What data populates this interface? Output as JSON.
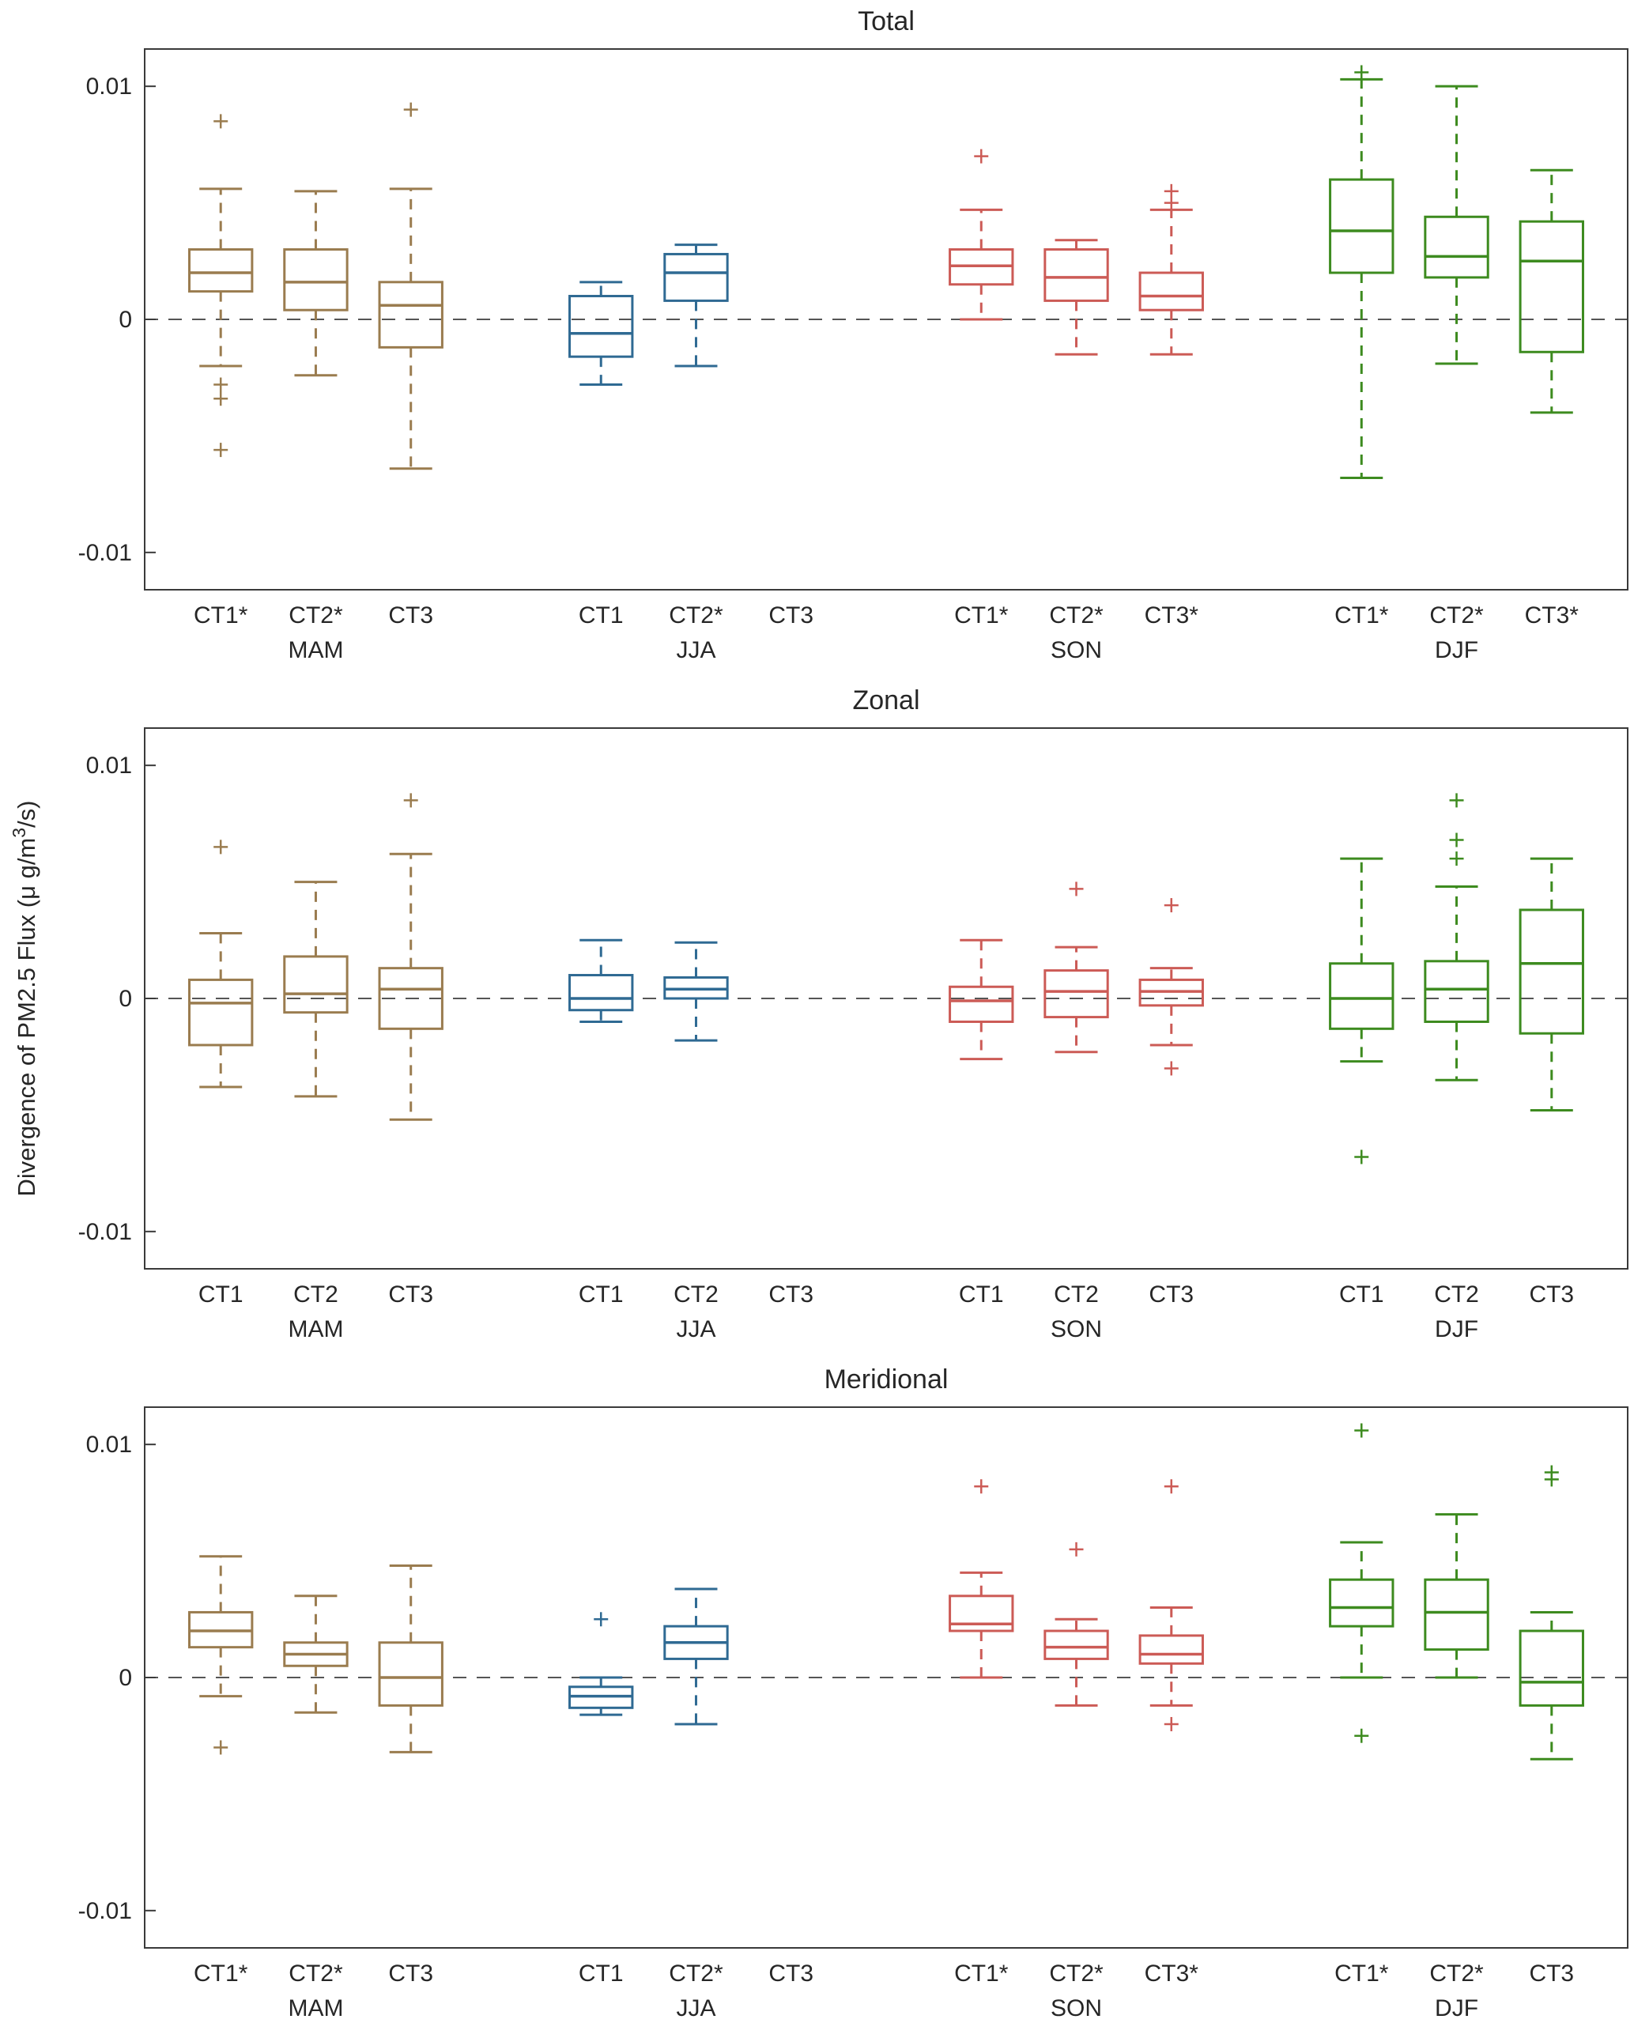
{
  "figure": {
    "y_ticks": [
      -0.01,
      0,
      0.01
    ],
    "ylim": [
      -0.0116,
      0.0116
    ],
    "ylabel_parts": {
      "pre": "Divergence of PM2.5 Flux (μ g/m",
      "sup": "3",
      "post": "/s)"
    },
    "season_colors": {
      "MAM": "#9A7C4F",
      "JJA": "#2F6A93",
      "SON": "#CC5B56",
      "DJF": "#3D8B1F"
    },
    "axis_color": "#3a3a3a",
    "text_color": "#262626",
    "zero_line_dashed": true
  },
  "chart_data": [
    {
      "type": "boxplot",
      "title": "Total",
      "show_ylabel": false,
      "groups": [
        {
          "season": "MAM",
          "boxes": [
            {
              "label": "CT1*",
              "stats": {
                "whislo": -0.002,
                "q1": 0.0012,
                "med": 0.002,
                "q3": 0.003,
                "whishi": 0.0056,
                "outliers": [
                  0.0085,
                  -0.0028,
                  -0.0034,
                  -0.0056
                ]
              }
            },
            {
              "label": "CT2*",
              "stats": {
                "whislo": -0.0024,
                "q1": 0.0004,
                "med": 0.0016,
                "q3": 0.003,
                "whishi": 0.0055,
                "outliers": []
              }
            },
            {
              "label": "CT3",
              "stats": {
                "whislo": -0.0064,
                "q1": -0.0012,
                "med": 0.0006,
                "q3": 0.0016,
                "whishi": 0.0056,
                "outliers": [
                  0.009
                ]
              }
            }
          ]
        },
        {
          "season": "JJA",
          "boxes": [
            {
              "label": "CT1",
              "stats": {
                "whislo": -0.0028,
                "q1": -0.0016,
                "med": -0.0006,
                "q3": 0.001,
                "whishi": 0.0016,
                "outliers": []
              }
            },
            {
              "label": "CT2*",
              "stats": {
                "whislo": -0.002,
                "q1": 0.0008,
                "med": 0.002,
                "q3": 0.0028,
                "whishi": 0.0032,
                "outliers": []
              }
            },
            {
              "label": "CT3",
              "stats": null
            }
          ]
        },
        {
          "season": "SON",
          "boxes": [
            {
              "label": "CT1*",
              "stats": {
                "whislo": 0.0,
                "q1": 0.0015,
                "med": 0.0023,
                "q3": 0.003,
                "whishi": 0.0047,
                "outliers": [
                  0.007
                ]
              }
            },
            {
              "label": "CT2*",
              "stats": {
                "whislo": -0.0015,
                "q1": 0.0008,
                "med": 0.0018,
                "q3": 0.003,
                "whishi": 0.0034,
                "outliers": []
              }
            },
            {
              "label": "CT3*",
              "stats": {
                "whislo": -0.0015,
                "q1": 0.0004,
                "med": 0.001,
                "q3": 0.002,
                "whishi": 0.0047,
                "outliers": [
                  0.0055,
                  0.005
                ]
              }
            }
          ]
        },
        {
          "season": "DJF",
          "boxes": [
            {
              "label": "CT1*",
              "stats": {
                "whislo": -0.0068,
                "q1": 0.002,
                "med": 0.0038,
                "q3": 0.006,
                "whishi": 0.0103,
                "outliers": [
                  0.0106
                ]
              }
            },
            {
              "label": "CT2*",
              "stats": {
                "whislo": -0.0019,
                "q1": 0.0018,
                "med": 0.0027,
                "q3": 0.0044,
                "whishi": 0.01,
                "outliers": []
              }
            },
            {
              "label": "CT3*",
              "stats": {
                "whislo": -0.004,
                "q1": -0.0014,
                "med": 0.0025,
                "q3": 0.0042,
                "whishi": 0.0064,
                "outliers": []
              }
            }
          ]
        }
      ]
    },
    {
      "type": "boxplot",
      "title": "Zonal",
      "show_ylabel": true,
      "groups": [
        {
          "season": "MAM",
          "boxes": [
            {
              "label": "CT1",
              "stats": {
                "whislo": -0.0038,
                "q1": -0.002,
                "med": -0.0002,
                "q3": 0.0008,
                "whishi": 0.0028,
                "outliers": [
                  0.0065
                ]
              }
            },
            {
              "label": "CT2",
              "stats": {
                "whislo": -0.0042,
                "q1": -0.0006,
                "med": 0.0002,
                "q3": 0.0018,
                "whishi": 0.005,
                "outliers": []
              }
            },
            {
              "label": "CT3",
              "stats": {
                "whislo": -0.0052,
                "q1": -0.0013,
                "med": 0.0004,
                "q3": 0.0013,
                "whishi": 0.0062,
                "outliers": [
                  0.0085
                ]
              }
            }
          ]
        },
        {
          "season": "JJA",
          "boxes": [
            {
              "label": "CT1",
              "stats": {
                "whislo": -0.001,
                "q1": -0.0005,
                "med": 0.0,
                "q3": 0.001,
                "whishi": 0.0025,
                "outliers": []
              }
            },
            {
              "label": "CT2",
              "stats": {
                "whislo": -0.0018,
                "q1": 0.0,
                "med": 0.0004,
                "q3": 0.0009,
                "whishi": 0.0024,
                "outliers": []
              }
            },
            {
              "label": "CT3",
              "stats": null
            }
          ]
        },
        {
          "season": "SON",
          "boxes": [
            {
              "label": "CT1",
              "stats": {
                "whislo": -0.0026,
                "q1": -0.001,
                "med": -0.0001,
                "q3": 0.0005,
                "whishi": 0.0025,
                "outliers": []
              }
            },
            {
              "label": "CT2",
              "stats": {
                "whislo": -0.0023,
                "q1": -0.0008,
                "med": 0.0003,
                "q3": 0.0012,
                "whishi": 0.0022,
                "outliers": [
                  0.0047
                ]
              }
            },
            {
              "label": "CT3",
              "stats": {
                "whislo": -0.002,
                "q1": -0.0003,
                "med": 0.0003,
                "q3": 0.0008,
                "whishi": 0.0013,
                "outliers": [
                  0.004,
                  -0.003
                ]
              }
            }
          ]
        },
        {
          "season": "DJF",
          "boxes": [
            {
              "label": "CT1",
              "stats": {
                "whislo": -0.0027,
                "q1": -0.0013,
                "med": 0.0,
                "q3": 0.0015,
                "whishi": 0.006,
                "outliers": [
                  -0.0068
                ]
              }
            },
            {
              "label": "CT2",
              "stats": {
                "whislo": -0.0035,
                "q1": -0.001,
                "med": 0.0004,
                "q3": 0.0016,
                "whishi": 0.0048,
                "outliers": [
                  0.0085,
                  0.0068,
                  0.006
                ]
              }
            },
            {
              "label": "CT3",
              "stats": {
                "whislo": -0.0048,
                "q1": -0.0015,
                "med": 0.0015,
                "q3": 0.0038,
                "whishi": 0.006,
                "outliers": []
              }
            }
          ]
        }
      ]
    },
    {
      "type": "boxplot",
      "title": "Meridional",
      "show_ylabel": false,
      "groups": [
        {
          "season": "MAM",
          "boxes": [
            {
              "label": "CT1*",
              "stats": {
                "whislo": -0.0008,
                "q1": 0.0013,
                "med": 0.002,
                "q3": 0.0028,
                "whishi": 0.0052,
                "outliers": [
                  -0.003
                ]
              }
            },
            {
              "label": "CT2*",
              "stats": {
                "whislo": -0.0015,
                "q1": 0.0005,
                "med": 0.001,
                "q3": 0.0015,
                "whishi": 0.0035,
                "outliers": []
              }
            },
            {
              "label": "CT3",
              "stats": {
                "whislo": -0.0032,
                "q1": -0.0012,
                "med": 0.0,
                "q3": 0.0015,
                "whishi": 0.0048,
                "outliers": []
              }
            }
          ]
        },
        {
          "season": "JJA",
          "boxes": [
            {
              "label": "CT1",
              "stats": {
                "whislo": -0.0016,
                "q1": -0.0013,
                "med": -0.0008,
                "q3": -0.0004,
                "whishi": 0.0,
                "outliers": [
                  0.0025
                ]
              }
            },
            {
              "label": "CT2*",
              "stats": {
                "whislo": -0.002,
                "q1": 0.0008,
                "med": 0.0015,
                "q3": 0.0022,
                "whishi": 0.0038,
                "outliers": []
              }
            },
            {
              "label": "CT3",
              "stats": null
            }
          ]
        },
        {
          "season": "SON",
          "boxes": [
            {
              "label": "CT1*",
              "stats": {
                "whislo": 0.0,
                "q1": 0.002,
                "med": 0.0023,
                "q3": 0.0035,
                "whishi": 0.0045,
                "outliers": [
                  0.0082
                ]
              }
            },
            {
              "label": "CT2*",
              "stats": {
                "whislo": -0.0012,
                "q1": 0.0008,
                "med": 0.0013,
                "q3": 0.002,
                "whishi": 0.0025,
                "outliers": [
                  0.0055
                ]
              }
            },
            {
              "label": "CT3*",
              "stats": {
                "whislo": -0.0012,
                "q1": 0.0006,
                "med": 0.001,
                "q3": 0.0018,
                "whishi": 0.003,
                "outliers": [
                  0.0082,
                  -0.002
                ]
              }
            }
          ]
        },
        {
          "season": "DJF",
          "boxes": [
            {
              "label": "CT1*",
              "stats": {
                "whislo": 0.0,
                "q1": 0.0022,
                "med": 0.003,
                "q3": 0.0042,
                "whishi": 0.0058,
                "outliers": [
                  0.0106,
                  -0.0025
                ]
              }
            },
            {
              "label": "CT2*",
              "stats": {
                "whislo": 0.0,
                "q1": 0.0012,
                "med": 0.0028,
                "q3": 0.0042,
                "whishi": 0.007,
                "outliers": []
              }
            },
            {
              "label": "CT3",
              "stats": {
                "whislo": -0.0035,
                "q1": -0.0012,
                "med": -0.0002,
                "q3": 0.002,
                "whishi": 0.0028,
                "outliers": [
                  0.0088,
                  0.0085
                ]
              }
            }
          ]
        }
      ]
    }
  ]
}
